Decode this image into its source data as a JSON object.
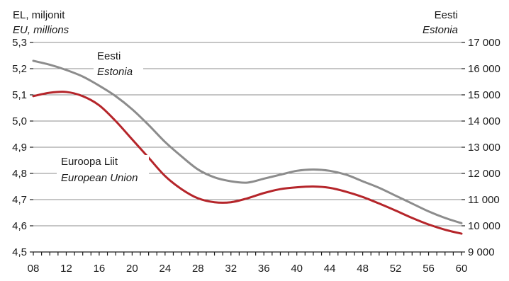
{
  "chart_data": {
    "type": "line",
    "left_axis_label": {
      "line1": "EL, miljonit",
      "line2": "EU, millions"
    },
    "right_axis_label": {
      "line1": "Eesti",
      "line2": "Estonia"
    },
    "x_ticks": [
      "08",
      "12",
      "16",
      "20",
      "24",
      "28",
      "32",
      "36",
      "40",
      "44",
      "48",
      "52",
      "56",
      "60"
    ],
    "xlim": [
      2008,
      2060
    ],
    "left_ylim": [
      4.5,
      5.3
    ],
    "left_ticks": [
      "5,3",
      "5,2",
      "5,1",
      "5,0",
      "4,9",
      "4,8",
      "4,7",
      "4,6",
      "4,5"
    ],
    "left_tick_values": [
      5.3,
      5.2,
      5.1,
      5.0,
      4.9,
      4.8,
      4.7,
      4.6,
      4.5
    ],
    "right_ylim": [
      9000,
      17000
    ],
    "right_ticks": [
      "17 000",
      "16 000",
      "15 000",
      "14 000",
      "13 000",
      "12 000",
      "11 000",
      "10 000",
      "9 000"
    ],
    "right_tick_values": [
      17000,
      16000,
      15000,
      14000,
      13000,
      12000,
      11000,
      10000,
      9000
    ],
    "grid": true,
    "series": [
      {
        "name": "Eesti",
        "name_en": "Estonia",
        "axis": "right",
        "color": "#8c8c8c",
        "x": [
          2008,
          2010,
          2012,
          2014,
          2016,
          2018,
          2020,
          2022,
          2024,
          2026,
          2028,
          2030,
          2032,
          2034,
          2036,
          2038,
          2040,
          2042,
          2044,
          2046,
          2048,
          2050,
          2052,
          2054,
          2056,
          2058,
          2060
        ],
        "values": [
          16300,
          16150,
          15950,
          15700,
          15350,
          14950,
          14450,
          13850,
          13200,
          12650,
          12150,
          11850,
          11700,
          11650,
          11800,
          11950,
          12100,
          12150,
          12100,
          11950,
          11700,
          11450,
          11150,
          10850,
          10550,
          10300,
          10100
        ]
      },
      {
        "name": "Euroopa Liit",
        "name_en": "European Union",
        "axis": "left",
        "color": "#b5252a",
        "x": [
          2008,
          2010,
          2012,
          2014,
          2016,
          2018,
          2020,
          2022,
          2024,
          2026,
          2028,
          2030,
          2032,
          2034,
          2036,
          2038,
          2040,
          2042,
          2044,
          2046,
          2048,
          2050,
          2052,
          2054,
          2056,
          2058,
          2060
        ],
        "values": [
          5.095,
          5.108,
          5.111,
          5.095,
          5.06,
          5.0,
          4.93,
          4.86,
          4.79,
          4.74,
          4.705,
          4.69,
          4.69,
          4.705,
          4.725,
          4.74,
          4.747,
          4.75,
          4.745,
          4.73,
          4.71,
          4.685,
          4.658,
          4.63,
          4.605,
          4.585,
          4.57
        ]
      }
    ]
  }
}
